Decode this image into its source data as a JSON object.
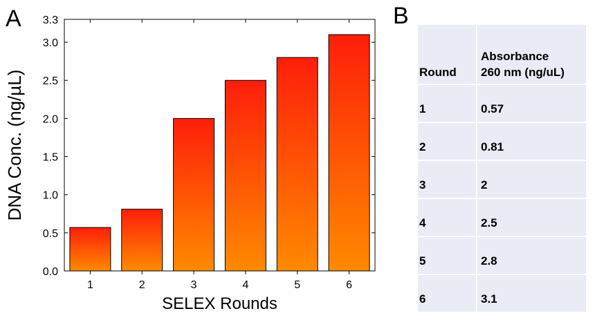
{
  "panels": {
    "a": "A",
    "b": "B"
  },
  "chart_data": {
    "type": "bar",
    "categories": [
      "1",
      "2",
      "3",
      "4",
      "5",
      "6"
    ],
    "values": [
      0.57,
      0.81,
      2.0,
      2.5,
      2.8,
      3.1
    ],
    "xlabel": "SELEX Rounds",
    "ylabel": "DNA Conc. (ng/µL)",
    "ylim": [
      0,
      3.3
    ],
    "yticks": [
      "0.0",
      "0.5",
      "1.0",
      "1.5",
      "2.0",
      "2.5",
      "3.0",
      "3.3"
    ],
    "bar_gradient": {
      "top": "#ff1e0a",
      "bottom": "#ff8a00"
    },
    "bar_outline": "#000000",
    "grid": false
  },
  "table": {
    "header": {
      "col1": "Round",
      "col2_line1": "Absorbance",
      "col2_line2": "260 nm (ng/uL)"
    },
    "rows": [
      {
        "round": "1",
        "value": "0.57"
      },
      {
        "round": "2",
        "value": "0.81"
      },
      {
        "round": "3",
        "value": "2"
      },
      {
        "round": "4",
        "value": "2.5"
      },
      {
        "round": "5",
        "value": "2.8"
      },
      {
        "round": "6",
        "value": "3.1"
      }
    ]
  }
}
